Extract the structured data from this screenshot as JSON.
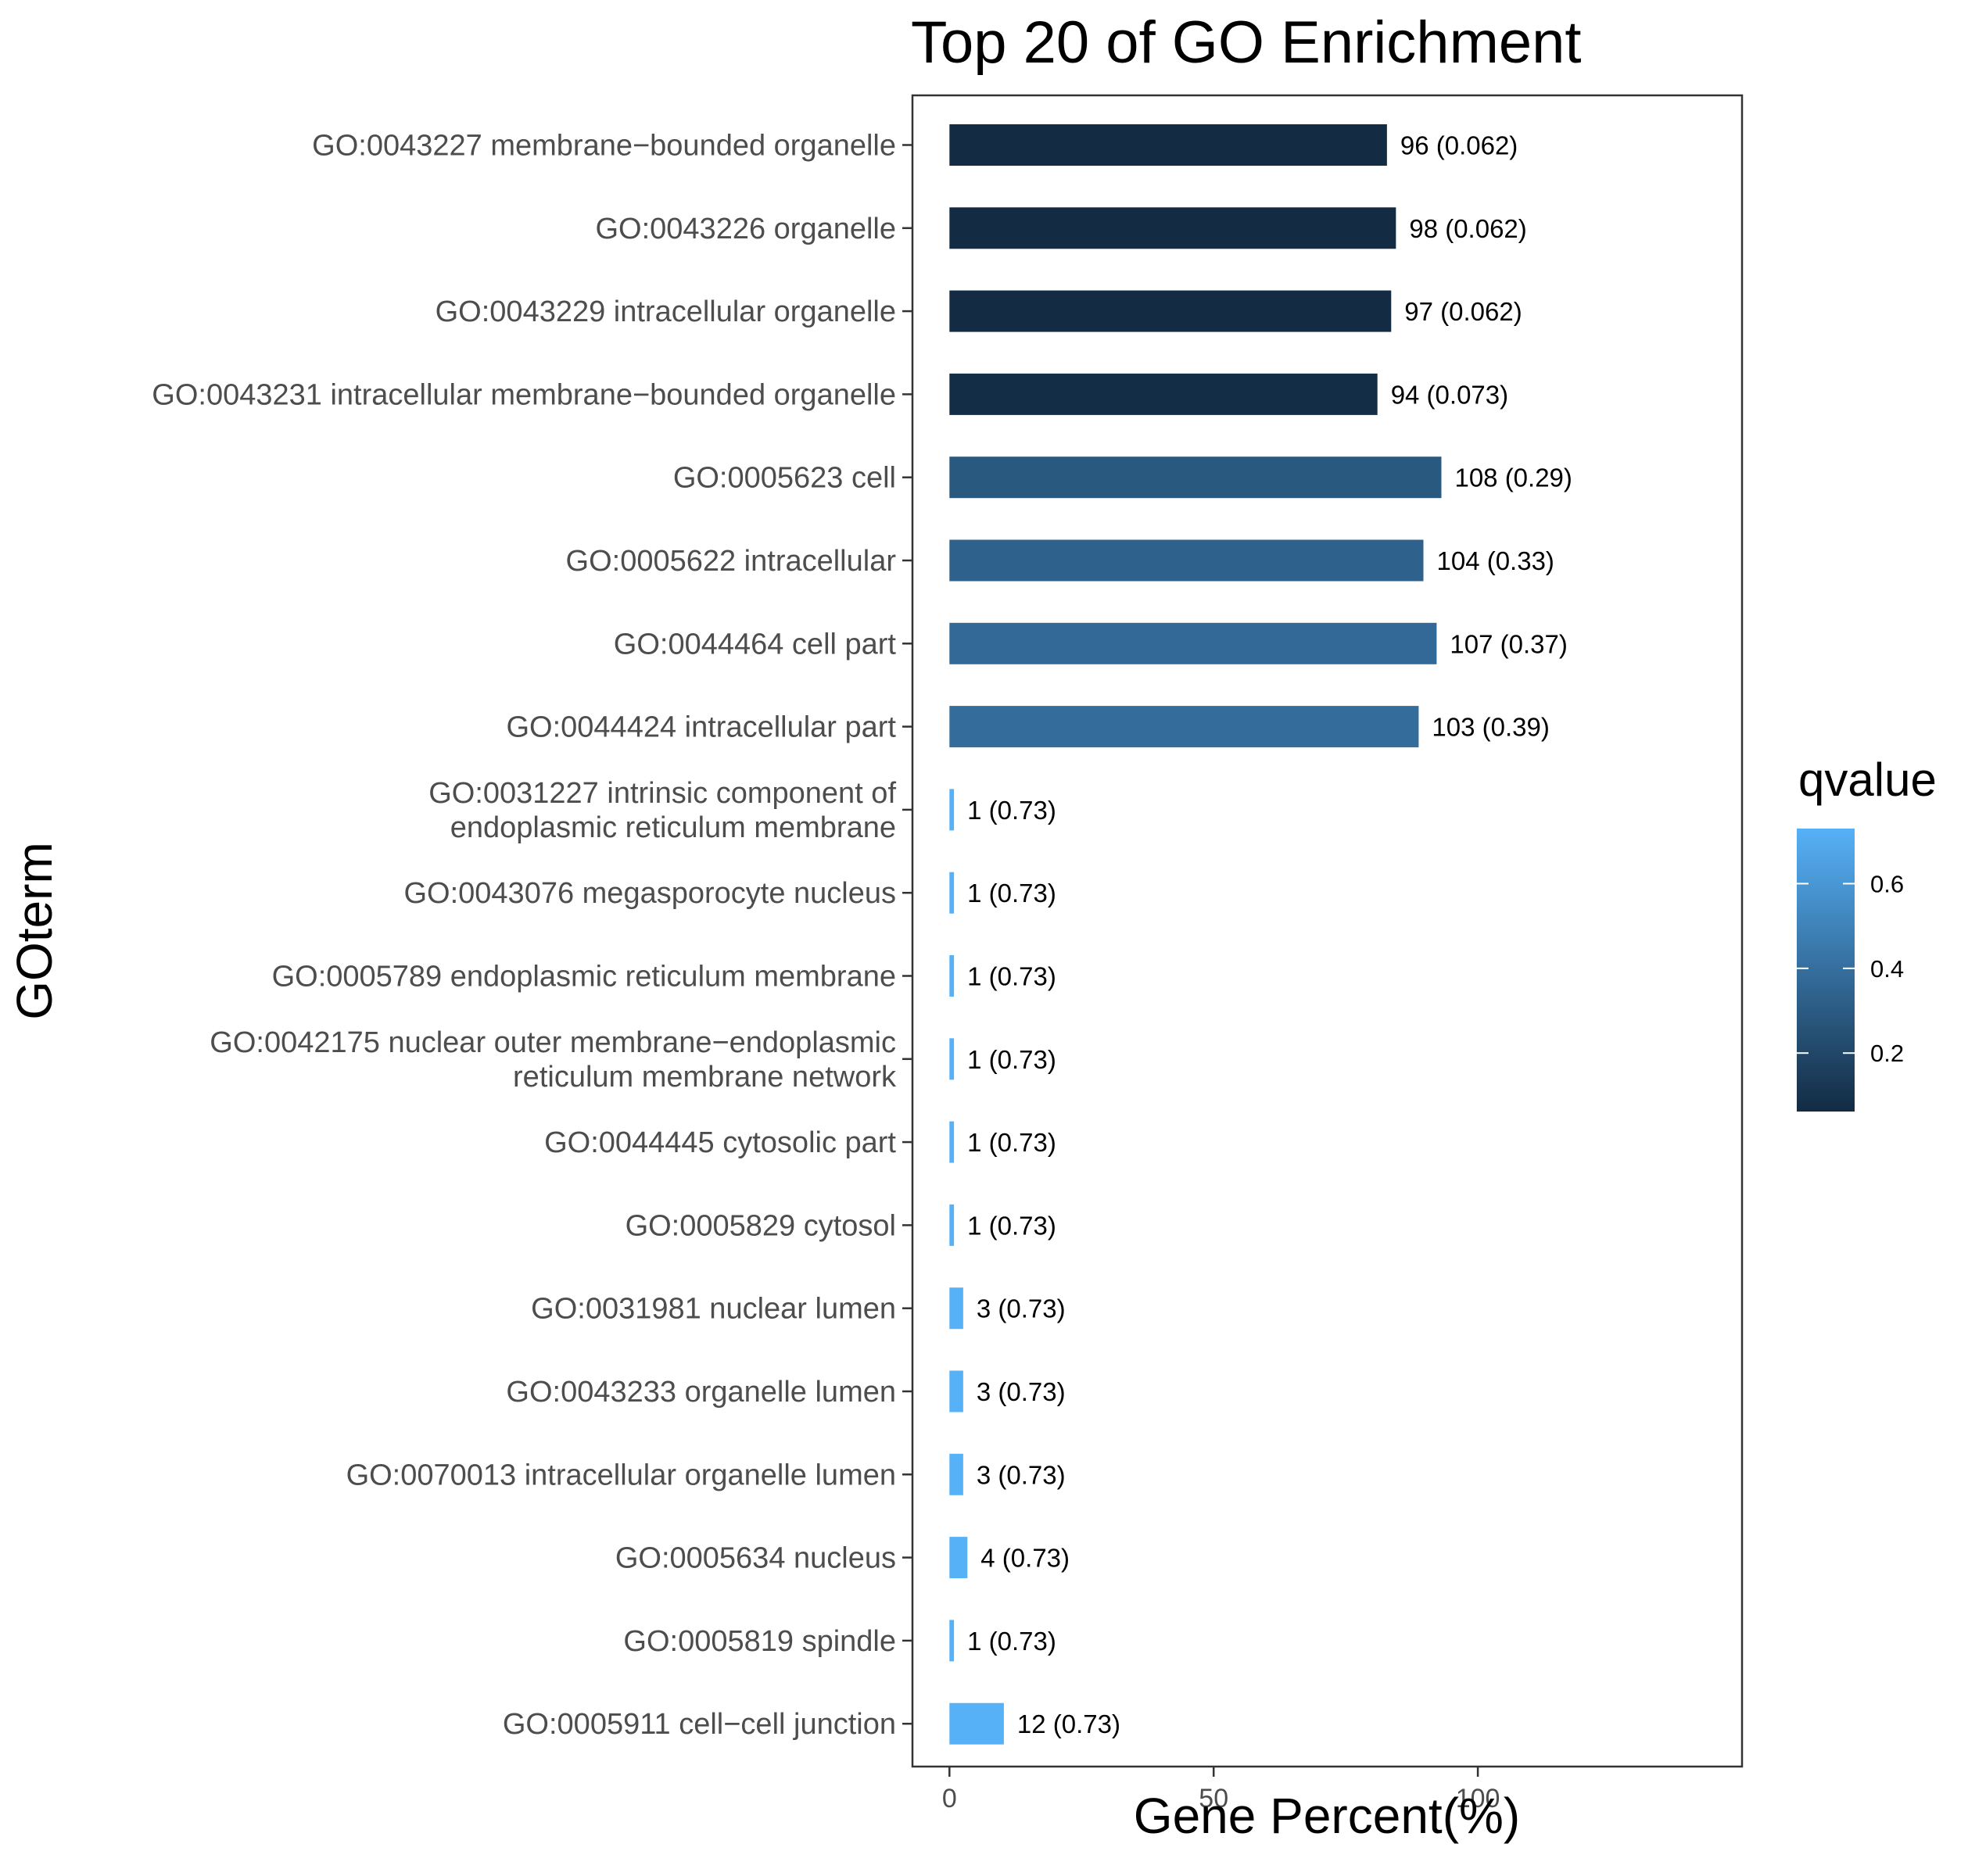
{
  "chart_data": {
    "type": "bar",
    "orientation": "horizontal",
    "title": "Top 20 of GO Enrichment",
    "xlabel": "Gene Percent(%)",
    "ylabel": "GOterm",
    "xlim": [
      -7,
      150
    ],
    "x_ticks": [
      "0",
      "50",
      "100"
    ],
    "x_tick_values": [
      0,
      50,
      100
    ],
    "grid": false,
    "legend": {
      "title": "qvalue",
      "placement": "right",
      "range": [
        0.062,
        0.73
      ],
      "ticks": [
        "0.2",
        "0.4",
        "0.6"
      ],
      "tick_values": [
        0.2,
        0.4,
        0.6
      ],
      "color_low": "#132B43",
      "color_high": "#56B1F7"
    },
    "categories": [
      [
        "GO:0043227 membrane−bounded organelle"
      ],
      [
        "GO:0043226 organelle"
      ],
      [
        "GO:0043229 intracellular organelle"
      ],
      [
        "GO:0043231 intracellular membrane−bounded organelle"
      ],
      [
        "GO:0005623 cell"
      ],
      [
        "GO:0005622 intracellular"
      ],
      [
        "GO:0044464 cell part"
      ],
      [
        "GO:0044424 intracellular part"
      ],
      [
        "GO:0031227 intrinsic component of",
        "endoplasmic reticulum membrane"
      ],
      [
        "GO:0043076 megasporocyte nucleus"
      ],
      [
        "GO:0005789 endoplasmic reticulum membrane"
      ],
      [
        "GO:0042175 nuclear outer membrane−endoplasmic",
        "reticulum membrane network"
      ],
      [
        "GO:0044445 cytosolic part"
      ],
      [
        "GO:0005829 cytosol"
      ],
      [
        "GO:0031981 nuclear lumen"
      ],
      [
        "GO:0043233 organelle lumen"
      ],
      [
        "GO:0070013 intracellular organelle lumen"
      ],
      [
        "GO:0005634 nucleus"
      ],
      [
        "GO:0005819 spindle"
      ],
      [
        "GO:0005911 cell−cell junction"
      ]
    ],
    "values": [
      82.8,
      84.5,
      83.6,
      81.0,
      93.1,
      89.7,
      92.2,
      88.8,
      0.86,
      0.86,
      0.86,
      0.86,
      0.86,
      0.86,
      2.6,
      2.6,
      2.6,
      3.4,
      0.86,
      10.3
    ],
    "gene_counts": [
      96,
      98,
      97,
      94,
      108,
      104,
      107,
      103,
      1,
      1,
      1,
      1,
      1,
      1,
      3,
      3,
      3,
      4,
      1,
      12
    ],
    "qvalues": [
      0.062,
      0.062,
      0.062,
      0.073,
      0.29,
      0.33,
      0.37,
      0.39,
      0.73,
      0.73,
      0.73,
      0.73,
      0.73,
      0.73,
      0.73,
      0.73,
      0.73,
      0.73,
      0.73,
      0.73
    ],
    "labels": [
      "96 (0.062)",
      "98 (0.062)",
      "97 (0.062)",
      "94 (0.073)",
      "108 (0.29)",
      "104 (0.33)",
      "107 (0.37)",
      "103 (0.39)",
      "1 (0.73)",
      "1 (0.73)",
      "1 (0.73)",
      "1 (0.73)",
      "1 (0.73)",
      "1 (0.73)",
      "3 (0.73)",
      "3 (0.73)",
      "3 (0.73)",
      "4 (0.73)",
      "1 (0.73)",
      "12 (0.73)"
    ]
  }
}
